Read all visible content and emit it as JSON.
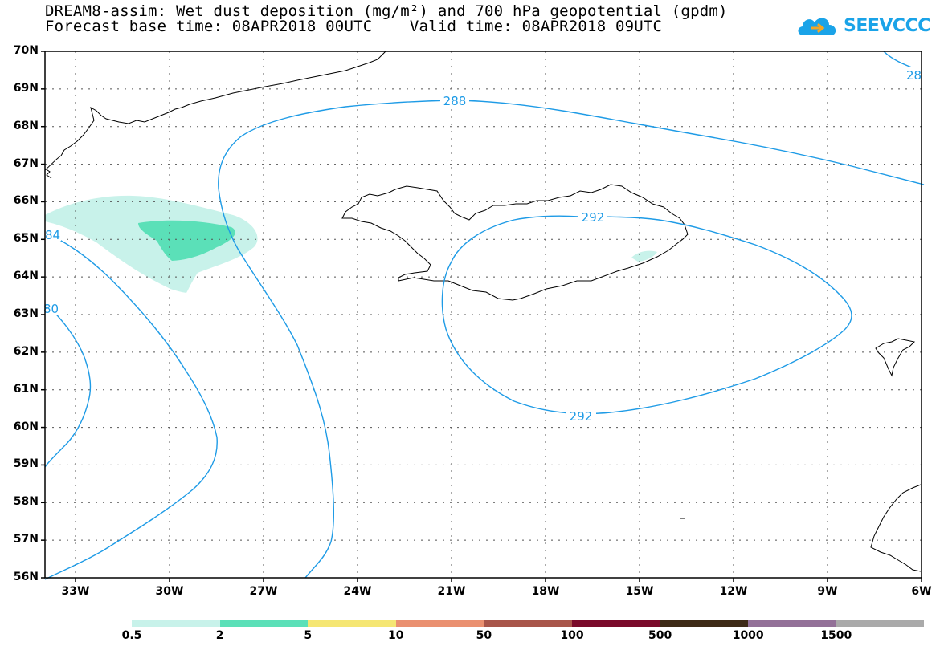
{
  "title": {
    "line1": "DREAM8-assim: Wet dust deposition (mg/m²) and 700 hPa geopotential (gpdm)",
    "line2": "Forecast base time: 08APR2018 00UTC    Valid time: 08APR2018 09UTC"
  },
  "logo": {
    "text": "SEEVCCC",
    "icon": "cloud-icon"
  },
  "axes": {
    "y_labels": [
      "70N",
      "69N",
      "68N",
      "67N",
      "66N",
      "65N",
      "64N",
      "63N",
      "62N",
      "61N",
      "60N",
      "59N",
      "58N",
      "57N",
      "56N"
    ],
    "x_labels": [
      "33W",
      "30W",
      "27W",
      "24W",
      "21W",
      "18W",
      "15W",
      "12W",
      "9W",
      "6W"
    ]
  },
  "contours": {
    "color": "#1e9be6",
    "labels": [
      "288",
      "292",
      "292",
      "84",
      "80",
      "28"
    ]
  },
  "colorbar": {
    "bins": [
      {
        "color": "#c8f2ea",
        "label": "0.5"
      },
      {
        "color": "#5be0b8",
        "label": "2"
      },
      {
        "color": "#f5e673",
        "label": "5"
      },
      {
        "color": "#ea9070",
        "label": "10"
      },
      {
        "color": "#a8554a",
        "label": "50"
      },
      {
        "color": "#7a0a2a",
        "label": "100"
      },
      {
        "color": "#3e2a17",
        "label": "500"
      },
      {
        "color": "#937198",
        "label": "1000"
      },
      {
        "color": "#aaaaaa",
        "label": "1500"
      }
    ]
  }
}
